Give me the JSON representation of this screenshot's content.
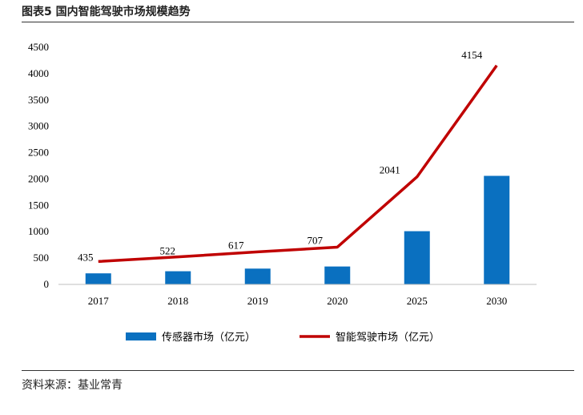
{
  "figure": {
    "title": "图表5 国内智能驾驶市场规模趋势",
    "source": "资料来源：基业常青"
  },
  "colors": {
    "bar": "#0a70c0",
    "line": "#c00000"
  },
  "chart_data": {
    "type": "bar",
    "categories": [
      "2017",
      "2018",
      "2019",
      "2020",
      "2025",
      "2030"
    ],
    "ylim": [
      0,
      4500
    ],
    "yticks": [
      0,
      500,
      1000,
      1500,
      2000,
      2500,
      3000,
      3500,
      4000,
      4500
    ],
    "grid": false,
    "legend_position": "bottom",
    "series": [
      {
        "name": "传感器市场（亿元）",
        "type": "bar",
        "values": [
          210,
          250,
          300,
          340,
          1010,
          2060
        ]
      },
      {
        "name": "智能驾驶市场（亿元）",
        "type": "line",
        "values": [
          435,
          522,
          617,
          707,
          2041,
          4154
        ],
        "data_labels": [
          "435",
          "522",
          "617",
          "707",
          "2041",
          "4154"
        ]
      }
    ]
  }
}
